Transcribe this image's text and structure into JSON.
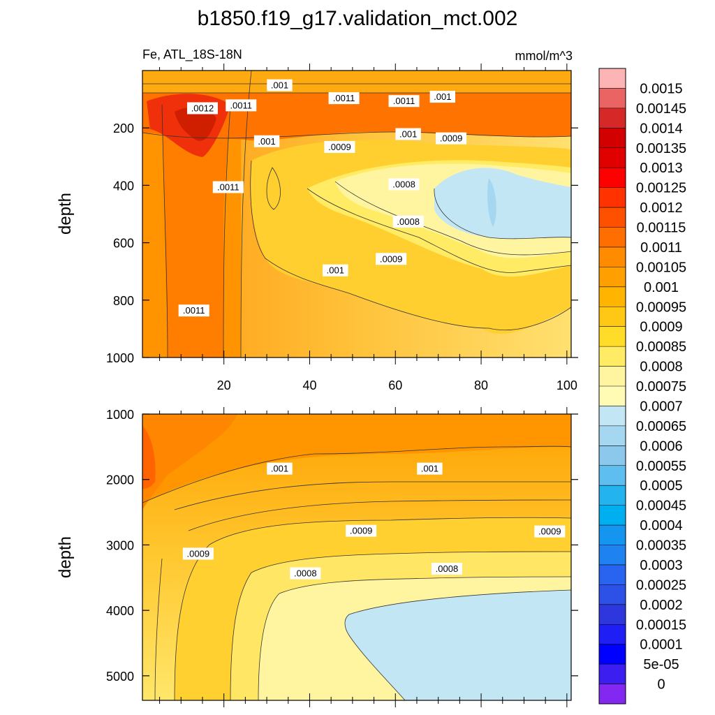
{
  "figure": {
    "title": "b1850.f19_g17.validation_mct.002",
    "variable_region": "Fe, ATL_18S-18N",
    "units": "mmol/m^3"
  },
  "chart_data": [
    {
      "type": "heatmap",
      "panel": "upper",
      "xlabel": "",
      "ylabel": "depth",
      "x_ticks": [
        "20",
        "40",
        "60",
        "80",
        "100"
      ],
      "y_ticks": [
        "200",
        "400",
        "600",
        "800",
        "1000"
      ],
      "xlim": [
        1,
        101
      ],
      "ylim": [
        1000,
        0
      ],
      "contour_labels": [
        {
          "text": ".001",
          "x": 33,
          "y": 55
        },
        {
          "text": ".0011",
          "x": 48,
          "y": 100
        },
        {
          "text": ".0011",
          "x": 62,
          "y": 110
        },
        {
          "text": ".001",
          "x": 71,
          "y": 95
        },
        {
          "text": ".0012",
          "x": 15,
          "y": 135
        },
        {
          "text": ".0011",
          "x": 24,
          "y": 125
        },
        {
          "text": ".001",
          "x": 30,
          "y": 250
        },
        {
          "text": ".0009",
          "x": 47,
          "y": 270
        },
        {
          "text": ".001",
          "x": 63,
          "y": 225
        },
        {
          "text": ".0009",
          "x": 73,
          "y": 240
        },
        {
          "text": ".0011",
          "x": 21,
          "y": 410
        },
        {
          "text": ".0008",
          "x": 62,
          "y": 400
        },
        {
          "text": ".0008",
          "x": 63,
          "y": 530
        },
        {
          "text": ".0009",
          "x": 59,
          "y": 660
        },
        {
          "text": ".001",
          "x": 46,
          "y": 700
        },
        {
          "text": ".0011",
          "x": 13,
          "y": 840
        }
      ]
    },
    {
      "type": "heatmap",
      "panel": "lower",
      "xlabel": "",
      "ylabel": "depth",
      "x_ticks": [],
      "y_ticks": [
        "1000",
        "2000",
        "3000",
        "4000",
        "5000"
      ],
      "xlim": [
        1,
        101
      ],
      "ylim": [
        5375,
        1000
      ],
      "contour_labels": [
        {
          "text": ".001",
          "x": 33,
          "y": 1850
        },
        {
          "text": ".001",
          "x": 68,
          "y": 1850
        },
        {
          "text": ".0009",
          "x": 52,
          "y": 2800
        },
        {
          "text": ".0009",
          "x": 96,
          "y": 2810
        },
        {
          "text": ".0009",
          "x": 14,
          "y": 3150
        },
        {
          "text": ".0008",
          "x": 39,
          "y": 3450
        },
        {
          "text": ".0008",
          "x": 72,
          "y": 3380
        }
      ]
    }
  ],
  "colorbar": {
    "levels": [
      "0.0015",
      "0.00145",
      "0.0014",
      "0.00135",
      "0.0013",
      "0.00125",
      "0.0012",
      "0.00115",
      "0.0011",
      "0.00105",
      "0.001",
      "0.00095",
      "0.0009",
      "0.00085",
      "0.0008",
      "0.00075",
      "0.0007",
      "0.00065",
      "0.0006",
      "0.00055",
      "0.0005",
      "0.00045",
      "0.0004",
      "0.00035",
      "0.0003",
      "0.00025",
      "0.0002",
      "0.00015",
      "0.0001",
      "5e-05",
      "0"
    ],
    "colors": [
      "#fcb4b4",
      "#eb6464",
      "#d72828",
      "#d20000",
      "#e10000",
      "#ff0000",
      "#ff3200",
      "#ff5000",
      "#ff6e00",
      "#ff8c00",
      "#ffa000",
      "#ffb400",
      "#ffc814",
      "#ffdc28",
      "#ffeb64",
      "#fff5a0",
      "#fffab4",
      "#c3e6f5",
      "#a5d7f0",
      "#8cc8eb",
      "#5fbef0",
      "#23b4f0",
      "#00aff0",
      "#1496f0",
      "#1e82f0",
      "#2864f0",
      "#2d50e6",
      "#2d37dc",
      "#1e1ef5",
      "#0000ff",
      "#3c1ef0",
      "#8228f0"
    ]
  }
}
